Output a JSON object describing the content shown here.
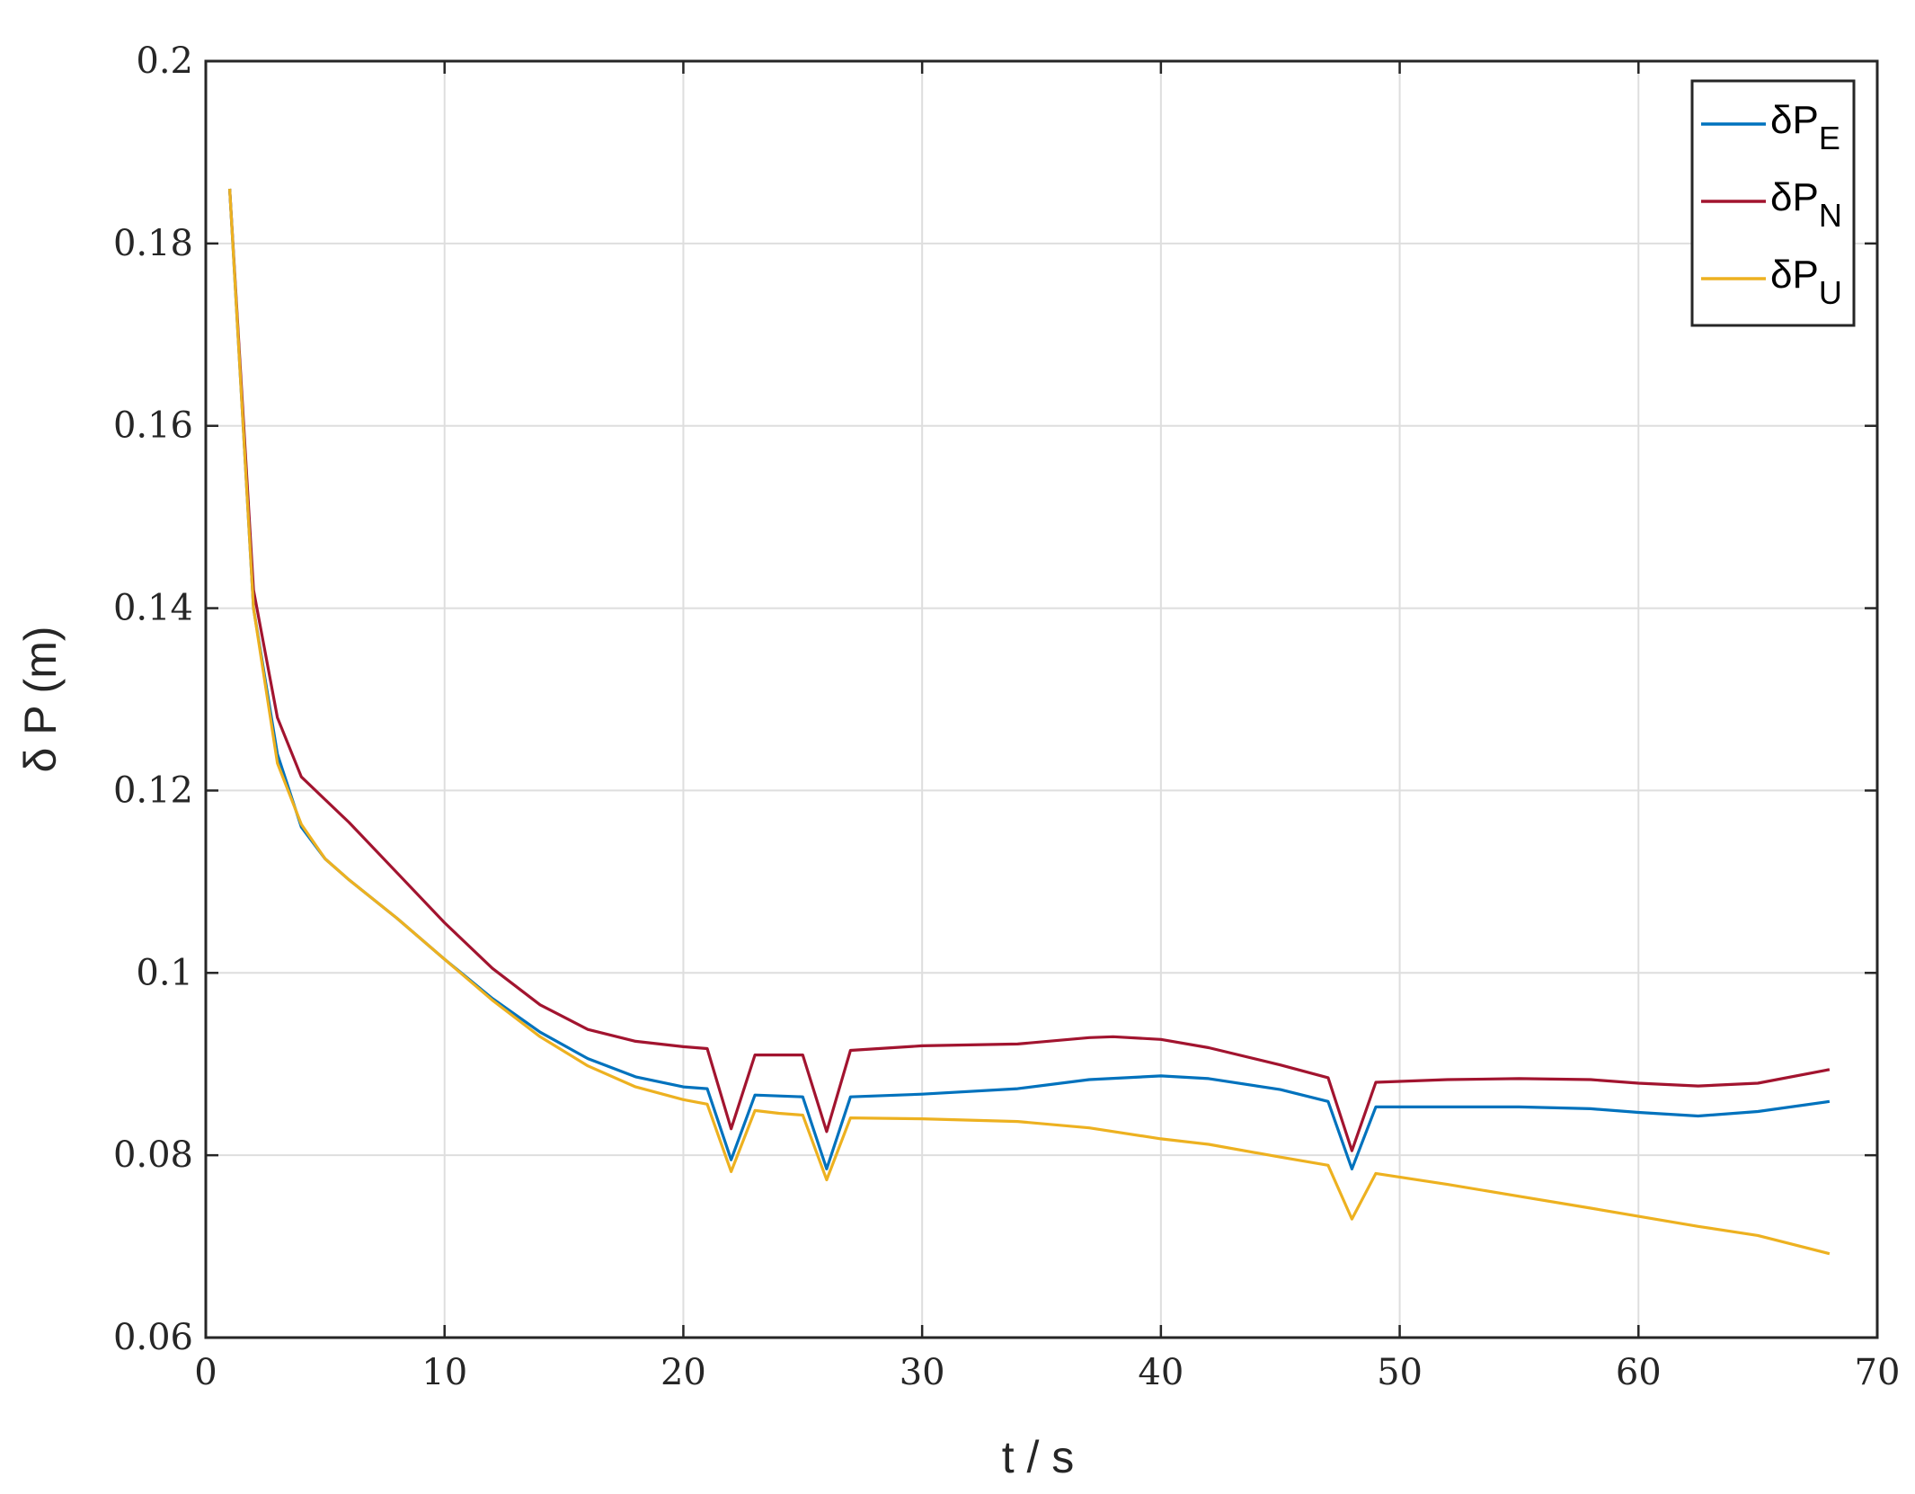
{
  "chart_data": {
    "type": "line",
    "xlabel": "t / s",
    "ylabel": "δ P (m)",
    "xlim": [
      0,
      70
    ],
    "ylim": [
      0.06,
      0.2
    ],
    "xticks": [
      0,
      10,
      20,
      30,
      40,
      50,
      60,
      70
    ],
    "yticks": [
      0.06,
      0.08,
      0.1,
      0.12,
      0.14,
      0.16,
      0.18,
      0.2
    ],
    "xtick_labels": [
      "0",
      "10",
      "20",
      "30",
      "40",
      "50",
      "60",
      "70"
    ],
    "ytick_labels": [
      "0.06",
      "0.08",
      "0.1",
      "0.12",
      "0.14",
      "0.16",
      "0.18",
      "0.2"
    ],
    "grid": true,
    "legend_position": "top-right",
    "series": [
      {
        "name": "δP_E",
        "label_main": "δP",
        "label_sub": "E",
        "color": "#0072BD",
        "x": [
          1,
          2,
          3,
          4,
          5,
          6,
          8,
          10,
          12,
          14,
          16,
          18,
          20,
          21,
          22,
          23,
          24,
          25,
          26,
          27,
          30,
          34,
          37,
          40,
          42,
          45,
          47,
          48,
          49,
          52,
          55,
          58,
          60,
          62.5,
          65,
          68
        ],
        "y": [
          0.186,
          0.14,
          0.124,
          0.116,
          0.1125,
          0.1102,
          0.106,
          0.1015,
          0.0972,
          0.0935,
          0.0906,
          0.0886,
          0.0875,
          0.0873,
          0.0795,
          0.0866,
          0.0865,
          0.0864,
          0.0785,
          0.0864,
          0.0867,
          0.0873,
          0.0883,
          0.0887,
          0.0884,
          0.0872,
          0.0859,
          0.0785,
          0.0853,
          0.0853,
          0.0853,
          0.0851,
          0.0847,
          0.0843,
          0.0848,
          0.0859
        ]
      },
      {
        "name": "δP_N",
        "label_main": "δP",
        "label_sub": "N",
        "color": "#A2142F",
        "x": [
          1,
          2,
          3,
          4,
          5,
          6,
          8,
          10,
          12,
          14,
          16,
          18,
          20,
          21,
          22,
          23,
          24,
          25,
          26,
          27,
          30,
          34,
          37,
          38,
          40,
          42,
          45,
          47,
          48,
          49,
          52,
          55,
          58,
          60,
          62.5,
          65,
          68
        ],
        "y": [
          0.186,
          0.142,
          0.128,
          0.1215,
          0.119,
          0.1165,
          0.111,
          0.1055,
          0.1005,
          0.0965,
          0.0938,
          0.0925,
          0.0919,
          0.0917,
          0.0829,
          0.091,
          0.091,
          0.091,
          0.0826,
          0.0915,
          0.092,
          0.0922,
          0.0929,
          0.093,
          0.0927,
          0.0918,
          0.0899,
          0.0885,
          0.0805,
          0.088,
          0.0883,
          0.0884,
          0.0883,
          0.0879,
          0.0876,
          0.0879,
          0.0894
        ]
      },
      {
        "name": "δP_U",
        "label_main": "δP",
        "label_sub": "U",
        "color": "#EDB120",
        "x": [
          1,
          2,
          3,
          4,
          5,
          6,
          8,
          10,
          12,
          14,
          16,
          18,
          20,
          21,
          22,
          23,
          24,
          25,
          26,
          27,
          30,
          34,
          37,
          40,
          42,
          45,
          47,
          48,
          49,
          52,
          55,
          58,
          60,
          62.5,
          65,
          68
        ],
        "y": [
          0.186,
          0.14,
          0.123,
          0.1163,
          0.1125,
          0.1102,
          0.106,
          0.1015,
          0.097,
          0.093,
          0.0898,
          0.0875,
          0.0861,
          0.0856,
          0.0782,
          0.0849,
          0.0846,
          0.0844,
          0.0773,
          0.0841,
          0.084,
          0.0837,
          0.083,
          0.0818,
          0.0812,
          0.0798,
          0.0789,
          0.073,
          0.078,
          0.0768,
          0.0755,
          0.0742,
          0.0733,
          0.0722,
          0.0712,
          0.0692
        ]
      }
    ]
  }
}
